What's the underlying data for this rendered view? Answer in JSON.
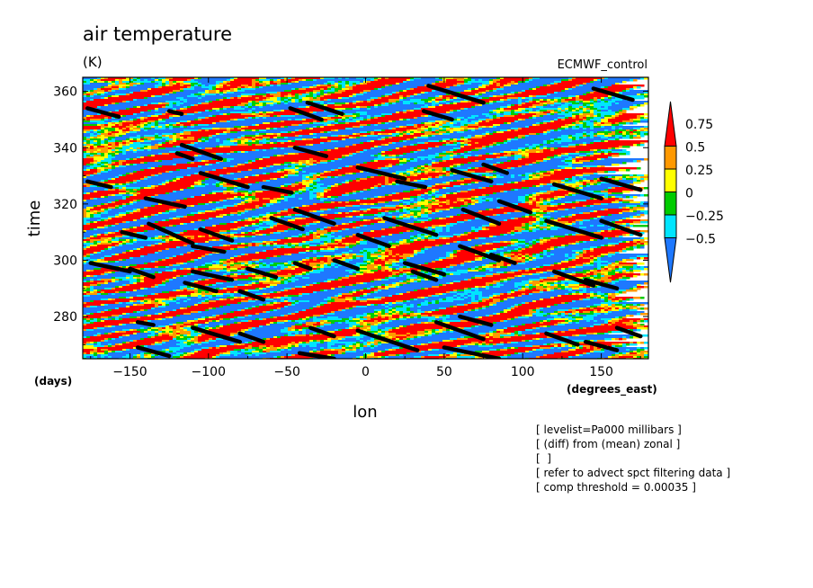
{
  "chart_data": {
    "type": "heatmap",
    "title": "air temperature",
    "units_label": "(K)",
    "source_label": "ECMWF_control",
    "xlabel": "lon",
    "x_units": "(degrees_east)",
    "ylabel": "time",
    "y_units": "(days)",
    "xlim": [
      -180,
      180
    ],
    "ylim": [
      265,
      365
    ],
    "x_ticks": [
      -150,
      -100,
      -50,
      0,
      50,
      100,
      150
    ],
    "x_tick_labels": [
      "−150",
      "−100",
      "−50",
      "0",
      "50",
      "100",
      "150"
    ],
    "y_ticks": [
      280,
      300,
      320,
      340,
      360
    ],
    "y_tick_labels": [
      "280",
      "300",
      "320",
      "340",
      "360"
    ],
    "colorbar": {
      "levels": [
        -0.5,
        -0.25,
        0,
        0.25,
        0.5,
        0.75
      ],
      "labels": [
        "−0.5",
        "−0.25",
        "0",
        "0.25",
        "0.5",
        "0.75"
      ],
      "colors": [
        "#1e78ff",
        "#00e5ff",
        "#00cc00",
        "#ffff00",
        "#ff9900",
        "#ff0000"
      ],
      "extend": "both"
    },
    "overlay_segments": [
      [
        [
          -177,
          354
        ],
        [
          -157,
          351
        ]
      ],
      [
        [
          -125,
          353
        ],
        [
          -117,
          352
        ]
      ],
      [
        [
          -48,
          354
        ],
        [
          -28,
          350
        ]
      ],
      [
        [
          -37,
          356
        ],
        [
          -15,
          352
        ]
      ],
      [
        [
          37,
          353
        ],
        [
          55,
          350
        ]
      ],
      [
        [
          40,
          362
        ],
        [
          75,
          356
        ]
      ],
      [
        [
          145,
          361
        ],
        [
          170,
          357
        ]
      ],
      [
        [
          -117,
          341
        ],
        [
          -92,
          336
        ]
      ],
      [
        [
          -120,
          338
        ],
        [
          -110,
          336
        ]
      ],
      [
        [
          -45,
          340
        ],
        [
          -25,
          337
        ]
      ],
      [
        [
          -105,
          331
        ],
        [
          -75,
          326
        ]
      ],
      [
        [
          -177,
          328
        ],
        [
          -162,
          326
        ]
      ],
      [
        [
          -65,
          326
        ],
        [
          -47,
          324
        ]
      ],
      [
        [
          -5,
          333
        ],
        [
          25,
          329
        ]
      ],
      [
        [
          20,
          328
        ],
        [
          38,
          326
        ]
      ],
      [
        [
          55,
          332
        ],
        [
          80,
          328
        ]
      ],
      [
        [
          75,
          334
        ],
        [
          90,
          331
        ]
      ],
      [
        [
          120,
          327
        ],
        [
          150,
          322
        ]
      ],
      [
        [
          150,
          329
        ],
        [
          175,
          325
        ]
      ],
      [
        [
          -140,
          322
        ],
        [
          -115,
          319
        ]
      ],
      [
        [
          -45,
          318
        ],
        [
          -20,
          313
        ]
      ],
      [
        [
          -60,
          315
        ],
        [
          -40,
          311
        ]
      ],
      [
        [
          -138,
          313
        ],
        [
          -110,
          306
        ]
      ],
      [
        [
          -105,
          311
        ],
        [
          -85,
          307
        ]
      ],
      [
        [
          -155,
          310
        ],
        [
          -140,
          308
        ]
      ],
      [
        [
          -5,
          309
        ],
        [
          15,
          305
        ]
      ],
      [
        [
          12,
          315
        ],
        [
          45,
          309
        ]
      ],
      [
        [
          62,
          318
        ],
        [
          85,
          313
        ]
      ],
      [
        [
          85,
          321
        ],
        [
          105,
          317
        ]
      ],
      [
        [
          115,
          314
        ],
        [
          150,
          308
        ]
      ],
      [
        [
          150,
          314
        ],
        [
          175,
          309
        ]
      ],
      [
        [
          -175,
          299
        ],
        [
          -150,
          296
        ]
      ],
      [
        [
          -150,
          297
        ],
        [
          -135,
          294
        ]
      ],
      [
        [
          -110,
          296
        ],
        [
          -85,
          293
        ]
      ],
      [
        [
          -75,
          297
        ],
        [
          -57,
          294
        ]
      ],
      [
        [
          -45,
          299
        ],
        [
          -35,
          297
        ]
      ],
      [
        [
          -115,
          292
        ],
        [
          -95,
          289
        ]
      ],
      [
        [
          -80,
          289
        ],
        [
          -65,
          286
        ]
      ],
      [
        [
          25,
          299
        ],
        [
          50,
          295
        ]
      ],
      [
        [
          30,
          296
        ],
        [
          45,
          293
        ]
      ],
      [
        [
          60,
          305
        ],
        [
          85,
          300
        ]
      ],
      [
        [
          80,
          302
        ],
        [
          95,
          299
        ]
      ],
      [
        [
          -145,
          278
        ],
        [
          -135,
          277
        ]
      ],
      [
        [
          -110,
          276
        ],
        [
          -80,
          271
        ]
      ],
      [
        [
          -80,
          274
        ],
        [
          -65,
          271
        ]
      ],
      [
        [
          -35,
          276
        ],
        [
          -20,
          273
        ]
      ],
      [
        [
          -5,
          275
        ],
        [
          33,
          268
        ]
      ],
      [
        [
          -145,
          269
        ],
        [
          -125,
          266
        ]
      ],
      [
        [
          -42,
          267
        ],
        [
          -20,
          265
        ]
      ],
      [
        [
          45,
          278
        ],
        [
          75,
          272
        ]
      ],
      [
        [
          60,
          280
        ],
        [
          80,
          277
        ]
      ],
      [
        [
          115,
          274
        ],
        [
          135,
          270
        ]
      ],
      [
        [
          140,
          271
        ],
        [
          160,
          268
        ]
      ],
      [
        [
          160,
          276
        ],
        [
          175,
          273
        ]
      ],
      [
        [
          50,
          269
        ],
        [
          85,
          265
        ]
      ],
      [
        [
          120,
          296
        ],
        [
          145,
          291
        ]
      ],
      [
        [
          140,
          293
        ],
        [
          160,
          290
        ]
      ],
      [
        [
          -20,
          300
        ],
        [
          -5,
          297
        ]
      ],
      [
        [
          -110,
          305
        ],
        [
          -90,
          303
        ]
      ]
    ]
  },
  "notes": [
    "[ levelist=Pa000 millibars ]",
    "[ (diff) from (mean) zonal ]",
    "[  ]",
    "[ refer to advect spct filtering data ]",
    "[ comp threshold = 0.00035 ]"
  ]
}
